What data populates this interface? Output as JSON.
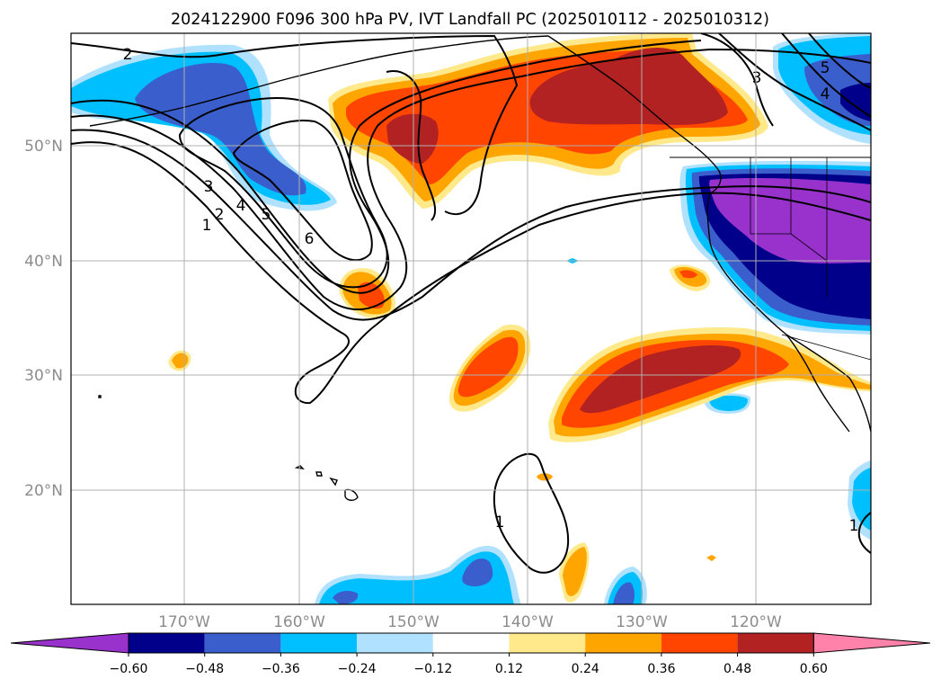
{
  "title": "2024122900 F096 300 hPa PV, IVT Landfall PC (2025010112 - 2025010312)",
  "lat_labels": [
    "50°N",
    "40°N",
    "30°N",
    "20°N"
  ],
  "lon_labels": [
    "170°W",
    "160°W",
    "150°W",
    "140°W",
    "130°W",
    "120°W"
  ],
  "colorbar": {
    "tick_labels": [
      "−0.60",
      "−0.48",
      "−0.36",
      "−0.24",
      "−0.12",
      "0.12",
      "0.24",
      "0.36",
      "0.48",
      "0.60"
    ],
    "colors": [
      "#9932cc",
      "#00008b",
      "#3a5fcd",
      "#00bfff",
      "#b0e2ff",
      "#ffffff",
      "#ffe98a",
      "#ffa500",
      "#ff4500",
      "#b22222",
      "#ff82ab"
    ]
  },
  "pv_contour_labels": [
    "1",
    "2",
    "3",
    "4",
    "5",
    "6",
    "1",
    "2",
    "3",
    "4",
    "5",
    "1"
  ]
}
